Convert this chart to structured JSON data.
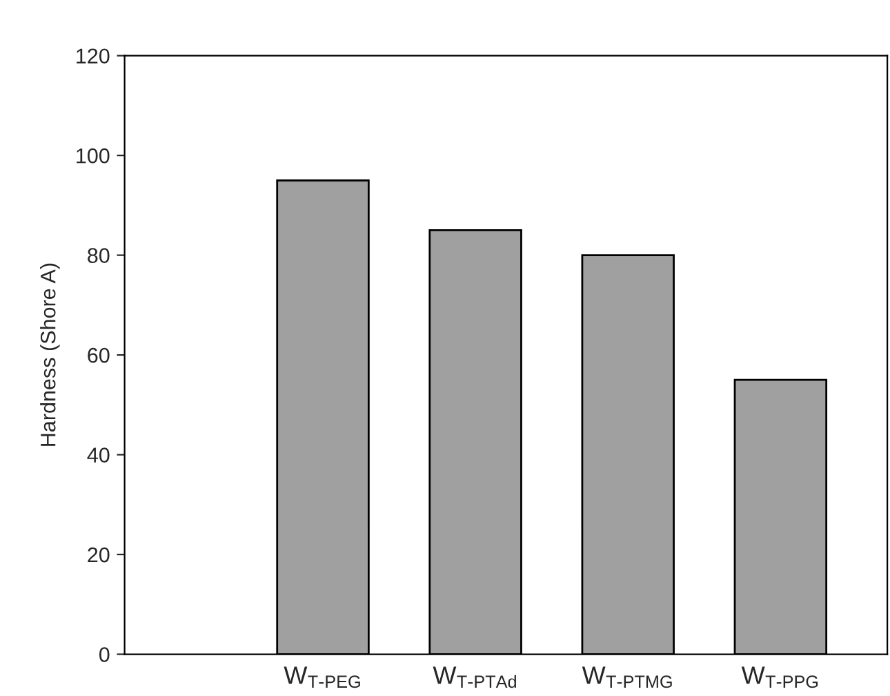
{
  "chart_data": {
    "type": "bar",
    "ylabel": "Hardness (Shore A)",
    "categories": [
      "W$_{T-PEG}$",
      "W$_{T-PTAd}$",
      "W$_{T-PTMG}$",
      "W$_{T-PPG}$"
    ],
    "values": [
      95,
      85,
      80,
      55
    ],
    "color": "#a0a0a0",
    "ylim": [
      0,
      120
    ],
    "yticks": [
      0,
      20,
      40,
      60,
      80,
      100,
      120
    ],
    "grid": false,
    "legend": false
  }
}
